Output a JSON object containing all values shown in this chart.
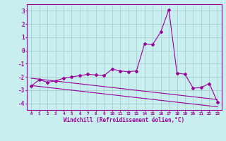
{
  "x": [
    0,
    1,
    2,
    3,
    4,
    5,
    6,
    7,
    8,
    9,
    10,
    11,
    12,
    13,
    14,
    15,
    16,
    17,
    18,
    19,
    20,
    21,
    22,
    23
  ],
  "line1": [
    -2.7,
    -2.2,
    -2.4,
    -2.3,
    -2.1,
    -2.0,
    -1.9,
    -1.8,
    -1.85,
    -1.9,
    -1.4,
    -1.55,
    -1.6,
    -1.55,
    0.5,
    0.45,
    1.4,
    3.1,
    -1.7,
    -1.8,
    -2.85,
    -2.8,
    -2.5,
    -3.9
  ],
  "line2_slope": [
    -2.65,
    -2.72,
    -2.79,
    -2.86,
    -2.93,
    -3.0,
    -3.07,
    -3.14,
    -3.21,
    -3.28,
    -3.35,
    -3.42,
    -3.49,
    -3.56,
    -3.63,
    -3.7,
    -3.77,
    -3.84,
    -3.91,
    -3.98,
    -4.05,
    -4.12,
    -4.19,
    -4.26
  ],
  "line3_slope": [
    -2.1,
    -2.17,
    -2.24,
    -2.31,
    -2.38,
    -2.45,
    -2.52,
    -2.59,
    -2.66,
    -2.73,
    -2.8,
    -2.87,
    -2.94,
    -3.01,
    -3.08,
    -3.15,
    -3.22,
    -3.29,
    -3.36,
    -3.43,
    -3.5,
    -3.57,
    -3.64,
    -3.71
  ],
  "color": "#990099",
  "bg_color": "#c8eef0",
  "grid_color": "#aacccc",
  "xlabel": "Windchill (Refroidissement éolien,°C)",
  "ylim": [
    -4.5,
    3.5
  ],
  "xlim": [
    -0.5,
    23.5
  ],
  "yticks": [
    3,
    2,
    1,
    0,
    -1,
    -2,
    -3,
    -4
  ],
  "xticks": [
    0,
    1,
    2,
    3,
    4,
    5,
    6,
    7,
    8,
    9,
    10,
    11,
    12,
    13,
    14,
    15,
    16,
    17,
    18,
    19,
    20,
    21,
    22,
    23
  ]
}
